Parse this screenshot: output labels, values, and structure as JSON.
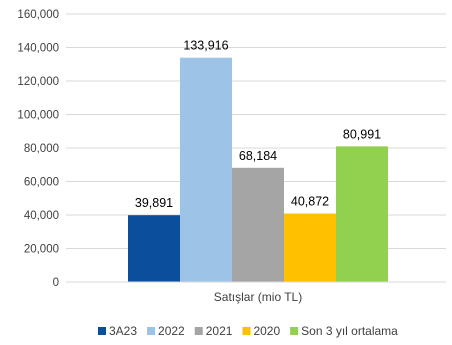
{
  "chart_data": {
    "type": "bar",
    "categories": [
      "Satışlar (mio TL)"
    ],
    "series": [
      {
        "name": "3A23",
        "values": [
          39891
        ],
        "label": "39,891",
        "color": "#0B4F9C"
      },
      {
        "name": "2022",
        "values": [
          133916
        ],
        "label": "133,916",
        "color": "#9DC3E6"
      },
      {
        "name": "2021",
        "values": [
          68184
        ],
        "label": "68,184",
        "color": "#A5A5A5"
      },
      {
        "name": "2020",
        "values": [
          40872
        ],
        "label": "40,872",
        "color": "#FFC000"
      },
      {
        "name": "Son 3 yıl ortalama",
        "values": [
          80991
        ],
        "label": "80,991",
        "color": "#92D050"
      }
    ],
    "y_ticks": [
      "0",
      "20,000",
      "40,000",
      "60,000",
      "80,000",
      "100,000",
      "120,000",
      "140,000",
      "160,000"
    ],
    "ylim": [
      0,
      160000
    ],
    "grid": true,
    "legend_position": "bottom"
  }
}
